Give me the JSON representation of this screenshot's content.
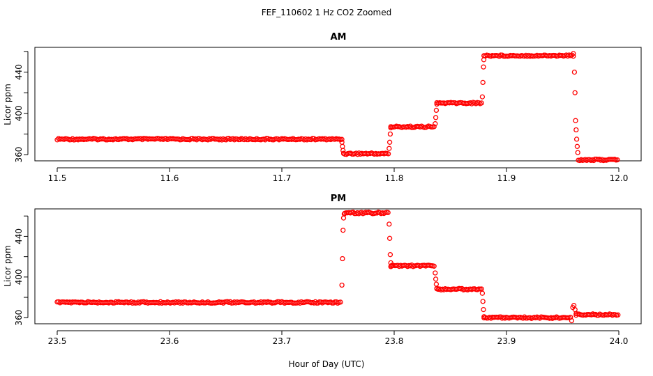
{
  "figure_title": "FEF_110602  1 Hz CO2 Zoomed",
  "xlabel": "Hour of Day (UTC)",
  "marker_color": "#ff0000",
  "chart_data": [
    {
      "type": "scatter",
      "title": "AM",
      "ylabel": "Licor ppm",
      "xlim": [
        11.5,
        12.0
      ],
      "ylim": [
        354,
        464
      ],
      "xticks": [
        "11.5",
        "11.6",
        "11.7",
        "11.8",
        "11.9",
        "12.0"
      ],
      "xtick_values": [
        11.5,
        11.6,
        11.7,
        11.8,
        11.9,
        12.0
      ],
      "yticks": [
        "360",
        "400",
        "440"
      ],
      "ytick_values": [
        360,
        400,
        440
      ],
      "segments": [
        {
          "x_start": 11.5,
          "x_end": 11.754,
          "y": 375
        },
        {
          "x_start": 11.755,
          "x_end": 11.795,
          "y": 361
        },
        {
          "x_start": 11.797,
          "x_end": 11.836,
          "y": 387
        },
        {
          "x_start": 11.838,
          "x_end": 11.878,
          "y": 410
        },
        {
          "x_start": 11.88,
          "x_end": 11.96,
          "y": 456
        },
        {
          "x_start": 11.964,
          "x_end": 12.0,
          "y": 355
        }
      ],
      "transitions": [
        {
          "x": [
            11.7535,
            11.754,
            11.7545,
            11.755
          ],
          "y": [
            372,
            368,
            364,
            361
          ]
        },
        {
          "x": [
            11.7955,
            11.796,
            11.7965,
            11.797
          ],
          "y": [
            366,
            372,
            380,
            386
          ]
        },
        {
          "x": [
            11.8365,
            11.837,
            11.8375,
            11.838
          ],
          "y": [
            390,
            396,
            403,
            409
          ]
        },
        {
          "x": [
            11.8785,
            11.879,
            11.8795,
            11.8798,
            11.88
          ],
          "y": [
            416,
            430,
            445,
            452,
            456
          ]
        },
        {
          "x": [
            11.9595,
            11.9605,
            11.961,
            11.9615,
            11.962,
            11.9625,
            11.963,
            11.9635
          ],
          "y": [
            458,
            440,
            420,
            393,
            384,
            375,
            368,
            362
          ]
        }
      ]
    },
    {
      "type": "scatter",
      "title": "PM",
      "ylabel": "Licor ppm",
      "xlim": [
        23.5,
        24.0
      ],
      "ylim": [
        354,
        467
      ],
      "xticks": [
        "23.5",
        "23.6",
        "23.7",
        "23.8",
        "23.9",
        "24.0"
      ],
      "xtick_values": [
        23.5,
        23.6,
        23.7,
        23.8,
        23.9,
        24.0
      ],
      "yticks": [
        "360",
        "400",
        "440"
      ],
      "ytick_values": [
        360,
        400,
        440
      ],
      "segments": [
        {
          "x_start": 23.5,
          "x_end": 23.753,
          "y": 375
        },
        {
          "x_start": 23.756,
          "x_end": 23.795,
          "y": 463
        },
        {
          "x_start": 23.797,
          "x_end": 23.836,
          "y": 411
        },
        {
          "x_start": 23.838,
          "x_end": 23.878,
          "y": 388
        },
        {
          "x_start": 23.88,
          "x_end": 23.958,
          "y": 360
        },
        {
          "x_start": 23.962,
          "x_end": 24.0,
          "y": 363
        }
      ],
      "transitions": [
        {
          "x": [
            23.7535,
            23.754,
            23.7545,
            23.755,
            23.7555
          ],
          "y": [
            392,
            418,
            446,
            458,
            462
          ]
        },
        {
          "x": [
            23.7955,
            23.796,
            23.7965,
            23.797,
            23.7975
          ],
          "y": [
            452,
            438,
            422,
            414,
            411
          ]
        },
        {
          "x": [
            23.8365,
            23.837,
            23.8375,
            23.838
          ],
          "y": [
            404,
            398,
            393,
            389
          ]
        },
        {
          "x": [
            23.8785,
            23.879,
            23.8795,
            23.88
          ],
          "y": [
            384,
            376,
            368,
            361
          ]
        },
        {
          "x": [
            23.958,
            23.959,
            23.96,
            23.961,
            23.962
          ],
          "y": [
            357,
            370,
            372,
            368,
            364
          ]
        }
      ]
    }
  ]
}
